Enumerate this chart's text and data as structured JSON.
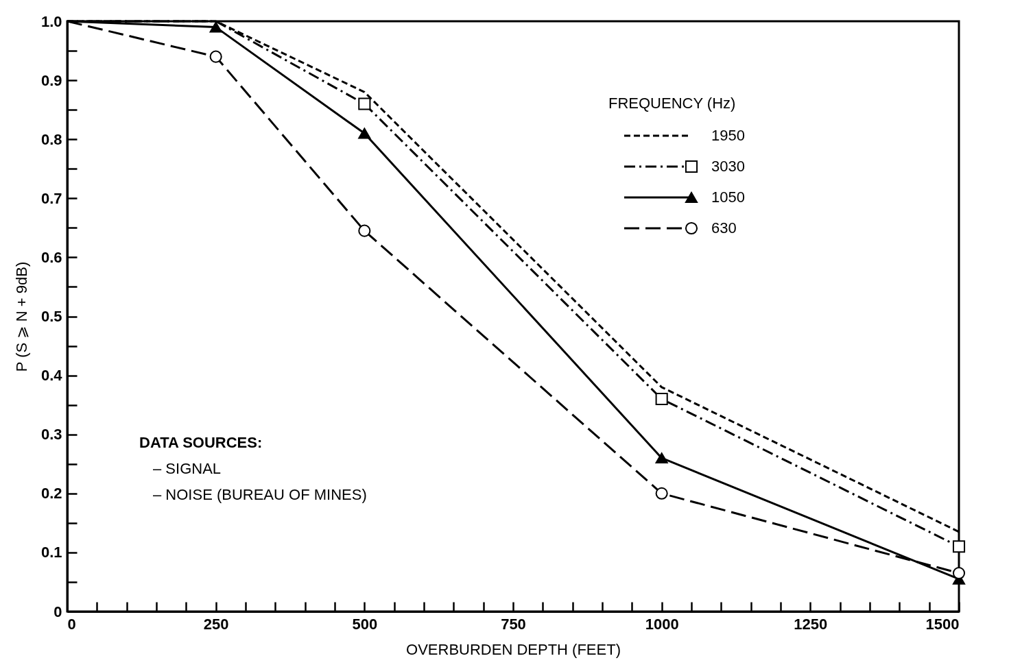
{
  "chart_data": {
    "type": "line",
    "xlabel": "OVERBURDEN DEPTH (FEET)",
    "ylabel": "P (S ⩾ N + 9dB)",
    "legend_title": "FREQUENCY (Hz)",
    "legend": "top right",
    "grid": false,
    "x": [
      0,
      250,
      500,
      1000,
      1500
    ],
    "xlim": [
      0,
      1500
    ],
    "ylim": [
      0,
      1
    ],
    "xticks": [
      0,
      {
        "value": 50,
        "label": null
      },
      {
        "value": 100,
        "label": null
      },
      {
        "value": 150,
        "label": null
      },
      {
        "value": 200,
        "label": null
      },
      250,
      {
        "value": 300,
        "label": null
      },
      {
        "value": 350,
        "label": null
      },
      {
        "value": 400,
        "label": null
      },
      {
        "value": 450,
        "label": null
      },
      500,
      {
        "value": 550,
        "label": null
      },
      {
        "value": 600,
        "label": null
      },
      {
        "value": 650,
        "label": null
      },
      {
        "value": 700,
        "label": null
      },
      750,
      {
        "value": 800,
        "label": null
      },
      {
        "value": 850,
        "label": null
      },
      {
        "value": 900,
        "label": null
      },
      {
        "value": 950,
        "label": null
      },
      1000,
      {
        "value": 1050,
        "label": null
      },
      {
        "value": 1100,
        "label": null
      },
      {
        "value": 1150,
        "label": null
      },
      {
        "value": 1200,
        "label": null
      },
      1250,
      {
        "value": 1300,
        "label": null
      },
      {
        "value": 1350,
        "label": null
      },
      {
        "value": 1400,
        "label": null
      },
      {
        "value": 1450,
        "label": null
      },
      1500
    ],
    "yticks": [
      0,
      {
        "value": 0.05,
        "label": null
      },
      0.1,
      {
        "value": 0.15,
        "label": null
      },
      0.2,
      {
        "value": 0.25,
        "label": null
      },
      0.3,
      {
        "value": 0.35,
        "label": null
      },
      0.4,
      {
        "value": 0.45,
        "label": null
      },
      0.5,
      {
        "value": 0.55,
        "label": null
      },
      0.6,
      {
        "value": 0.65,
        "label": null
      },
      0.7,
      {
        "value": 0.75,
        "label": null
      },
      0.8,
      {
        "value": 0.85,
        "label": null
      },
      0.9,
      {
        "value": 0.95,
        "label": null
      },
      {
        "value": 1,
        "label": "1.0"
      }
    ],
    "series": [
      {
        "name": "1950",
        "color": "#000000",
        "line_style": "dashed",
        "marker": "none",
        "values": [
          1.0,
          1.0,
          0.88,
          0.38,
          0.135
        ]
      },
      {
        "name": "3030",
        "color": "#000000",
        "line_style": "dashdot",
        "marker": "square",
        "values": [
          1.0,
          1.0,
          0.86,
          0.36,
          0.11
        ]
      },
      {
        "name": "1050",
        "color": "#000000",
        "line_style": "solid",
        "marker": "triangle",
        "values": [
          1.0,
          0.99,
          0.81,
          0.26,
          0.055
        ]
      },
      {
        "name": "630",
        "color": "#000000",
        "line_style": "longdash",
        "marker": "circle",
        "values": [
          1.0,
          0.94,
          0.645,
          0.2,
          0.065
        ]
      }
    ],
    "annotations": [
      "DATA SOURCES:",
      "– SIGNAL",
      "– NOISE (BUREAU OF MINES)"
    ]
  }
}
